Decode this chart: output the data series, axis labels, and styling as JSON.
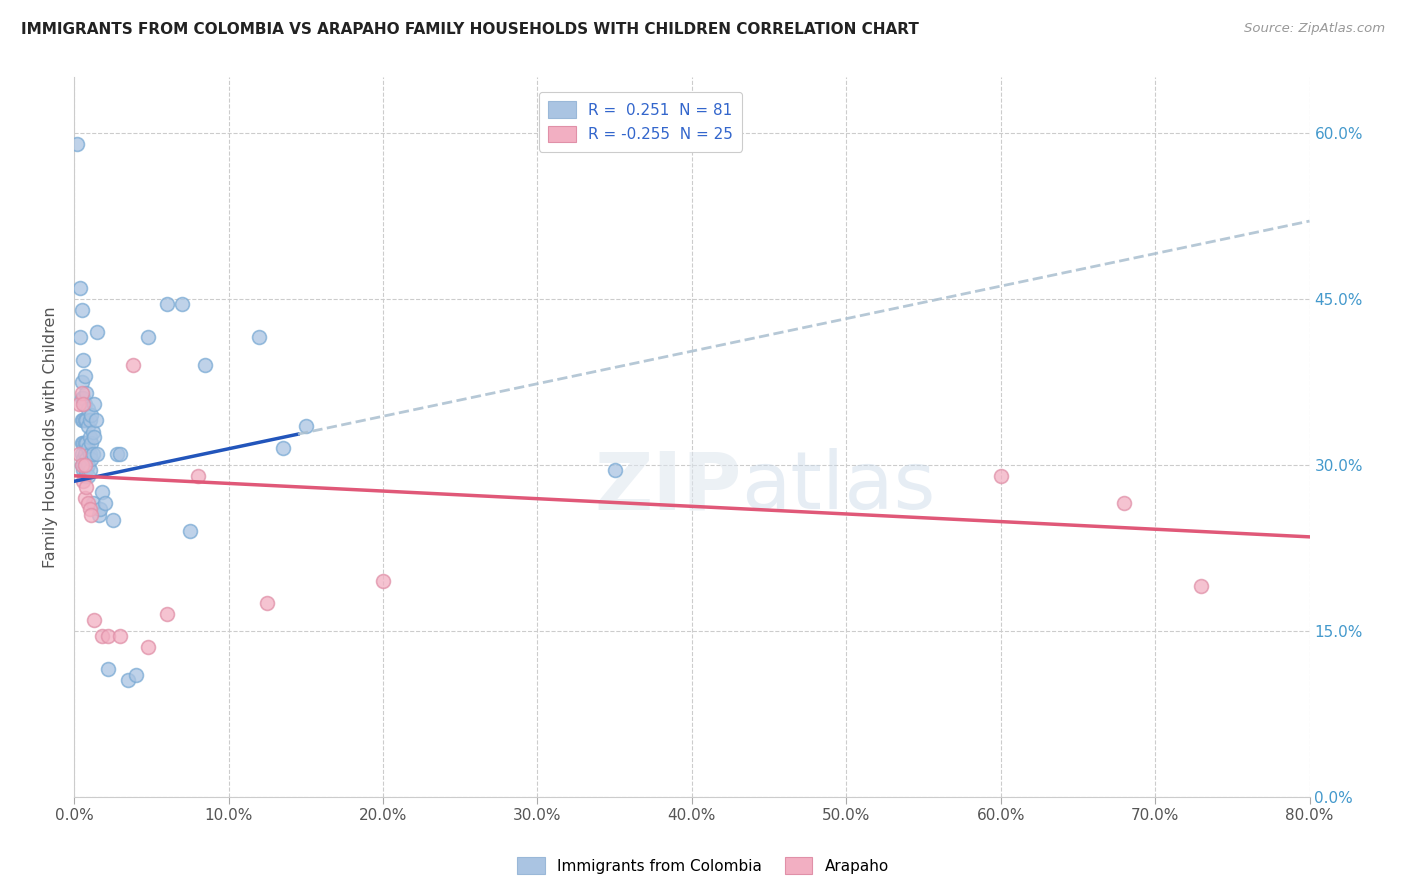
{
  "title": "IMMIGRANTS FROM COLOMBIA VS ARAPAHO FAMILY HOUSEHOLDS WITH CHILDREN CORRELATION CHART",
  "source": "Source: ZipAtlas.com",
  "xlabel_bottom": "Immigrants from Colombia",
  "xlabel_bottom2": "Arapaho",
  "ylabel": "Family Households with Children",
  "xlim": [
    0.0,
    0.8
  ],
  "ylim": [
    0.0,
    0.65
  ],
  "blue_color": "#aac4e2",
  "pink_color": "#f2afc2",
  "blue_line_color": "#2255bb",
  "pink_line_color": "#e05878",
  "dashed_line_color": "#aabfcf",
  "blue_scatter": [
    [
      0.002,
      0.59
    ],
    [
      0.004,
      0.46
    ],
    [
      0.004,
      0.415
    ],
    [
      0.005,
      0.44
    ],
    [
      0.005,
      0.375
    ],
    [
      0.005,
      0.36
    ],
    [
      0.005,
      0.34
    ],
    [
      0.005,
      0.32
    ],
    [
      0.005,
      0.31
    ],
    [
      0.005,
      0.3
    ],
    [
      0.006,
      0.395
    ],
    [
      0.006,
      0.36
    ],
    [
      0.006,
      0.34
    ],
    [
      0.006,
      0.32
    ],
    [
      0.006,
      0.305
    ],
    [
      0.006,
      0.295
    ],
    [
      0.007,
      0.38
    ],
    [
      0.007,
      0.355
    ],
    [
      0.007,
      0.34
    ],
    [
      0.007,
      0.32
    ],
    [
      0.007,
      0.31
    ],
    [
      0.007,
      0.3
    ],
    [
      0.007,
      0.29
    ],
    [
      0.008,
      0.365
    ],
    [
      0.008,
      0.34
    ],
    [
      0.008,
      0.32
    ],
    [
      0.008,
      0.305
    ],
    [
      0.008,
      0.295
    ],
    [
      0.009,
      0.35
    ],
    [
      0.009,
      0.335
    ],
    [
      0.009,
      0.315
    ],
    [
      0.009,
      0.3
    ],
    [
      0.009,
      0.29
    ],
    [
      0.01,
      0.34
    ],
    [
      0.01,
      0.325
    ],
    [
      0.01,
      0.31
    ],
    [
      0.01,
      0.295
    ],
    [
      0.011,
      0.345
    ],
    [
      0.011,
      0.32
    ],
    [
      0.011,
      0.305
    ],
    [
      0.012,
      0.33
    ],
    [
      0.012,
      0.31
    ],
    [
      0.012,
      0.265
    ],
    [
      0.013,
      0.355
    ],
    [
      0.013,
      0.325
    ],
    [
      0.014,
      0.34
    ],
    [
      0.015,
      0.42
    ],
    [
      0.015,
      0.31
    ],
    [
      0.016,
      0.255
    ],
    [
      0.017,
      0.26
    ],
    [
      0.018,
      0.275
    ],
    [
      0.02,
      0.265
    ],
    [
      0.022,
      0.115
    ],
    [
      0.025,
      0.25
    ],
    [
      0.028,
      0.31
    ],
    [
      0.03,
      0.31
    ],
    [
      0.035,
      0.105
    ],
    [
      0.04,
      0.11
    ],
    [
      0.048,
      0.415
    ],
    [
      0.06,
      0.445
    ],
    [
      0.07,
      0.445
    ],
    [
      0.075,
      0.24
    ],
    [
      0.085,
      0.39
    ],
    [
      0.12,
      0.415
    ],
    [
      0.135,
      0.315
    ],
    [
      0.15,
      0.335
    ],
    [
      0.35,
      0.295
    ]
  ],
  "pink_scatter": [
    [
      0.003,
      0.355
    ],
    [
      0.003,
      0.31
    ],
    [
      0.005,
      0.365
    ],
    [
      0.005,
      0.3
    ],
    [
      0.006,
      0.355
    ],
    [
      0.006,
      0.285
    ],
    [
      0.007,
      0.3
    ],
    [
      0.007,
      0.27
    ],
    [
      0.008,
      0.28
    ],
    [
      0.009,
      0.265
    ],
    [
      0.01,
      0.26
    ],
    [
      0.011,
      0.255
    ],
    [
      0.013,
      0.16
    ],
    [
      0.018,
      0.145
    ],
    [
      0.022,
      0.145
    ],
    [
      0.03,
      0.145
    ],
    [
      0.038,
      0.39
    ],
    [
      0.048,
      0.135
    ],
    [
      0.06,
      0.165
    ],
    [
      0.08,
      0.29
    ],
    [
      0.125,
      0.175
    ],
    [
      0.2,
      0.195
    ],
    [
      0.6,
      0.29
    ],
    [
      0.68,
      0.265
    ],
    [
      0.73,
      0.19
    ]
  ]
}
